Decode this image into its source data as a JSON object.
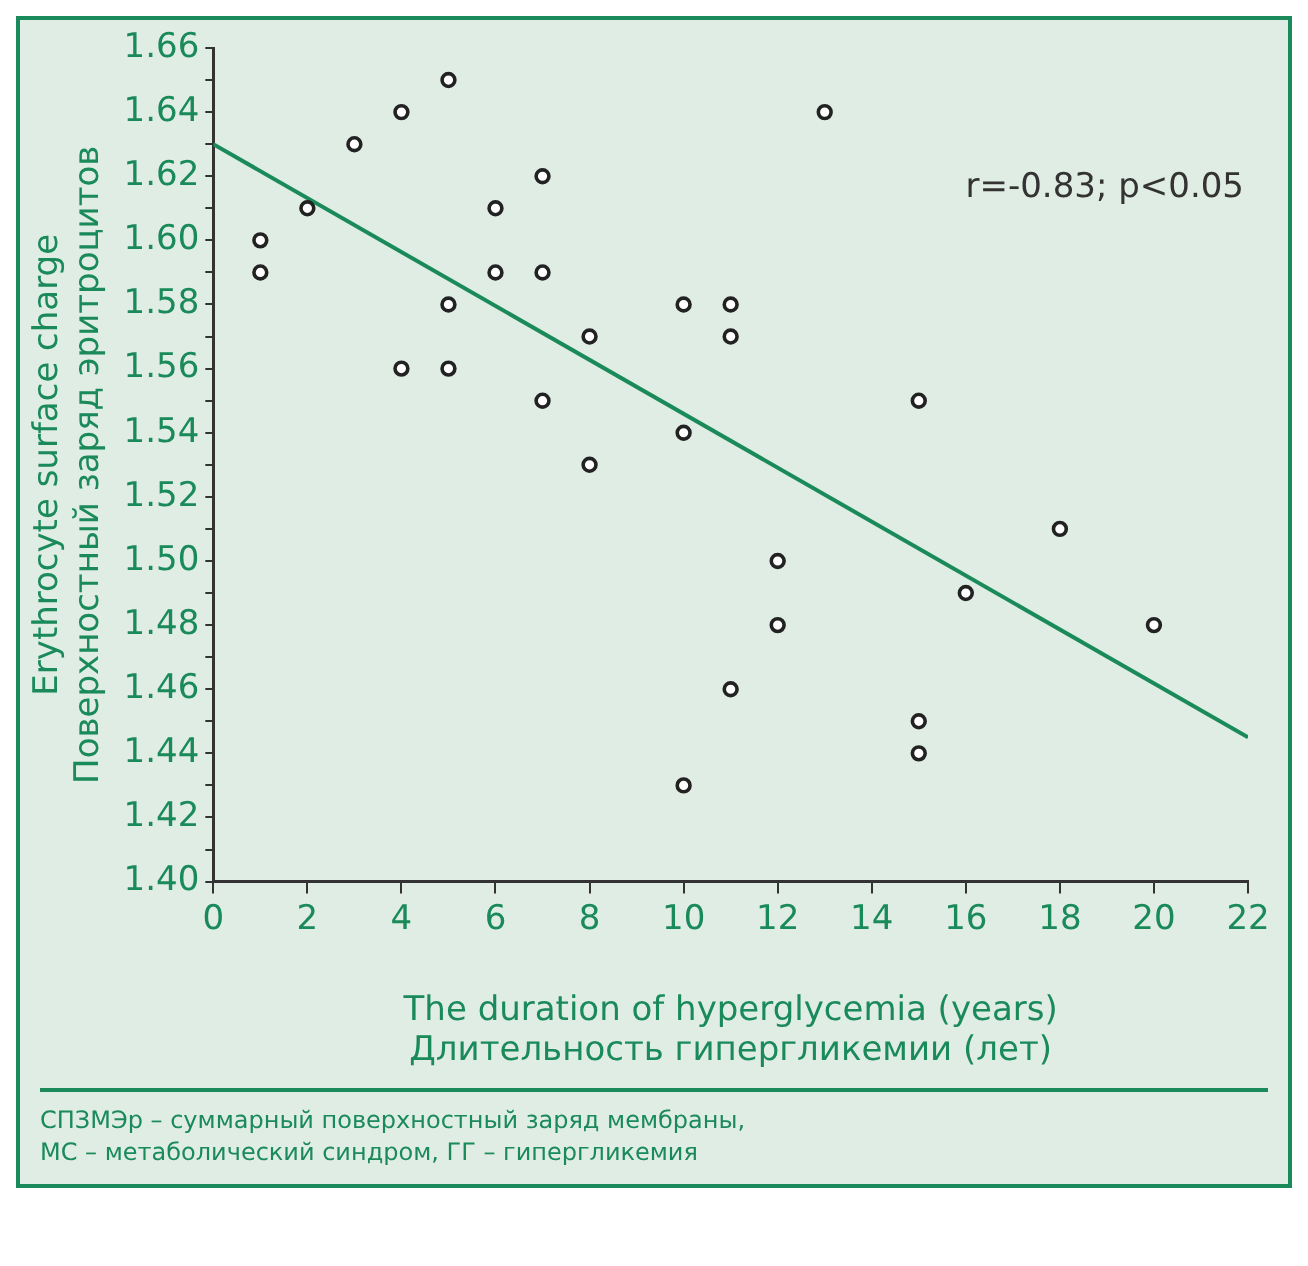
{
  "chart_data": {
    "type": "scatter",
    "xlabel": "The duration of hyperglycemia (years)\nДлительность гипергликемии (лет)",
    "ylabel": "Erythrocyte surface charge\nПоверхностный заряд эритроцитов",
    "annotations": [
      "r=-0.83; p<0.05",
      "СПЗМЭр – суммарный поверхностный заряд мембраны,\nМС – метаболический синдром, ГГ – гипергликемия"
    ],
    "series": [
      {
        "color": "#222222",
        "marker": "circle",
        "x": [
          1,
          1,
          2,
          3,
          4,
          4,
          5,
          5,
          5,
          6,
          6,
          7,
          7,
          7,
          8,
          8,
          10,
          10,
          10,
          11,
          11,
          11,
          12,
          12,
          13,
          15,
          15,
          15,
          16,
          18,
          20
        ],
        "values": [
          1.6,
          1.59,
          1.61,
          1.63,
          1.64,
          1.56,
          1.65,
          1.58,
          1.56,
          1.61,
          1.59,
          1.62,
          1.59,
          1.55,
          1.57,
          1.53,
          1.58,
          1.54,
          1.43,
          1.58,
          1.57,
          1.46,
          1.5,
          1.48,
          1.64,
          1.55,
          1.45,
          1.44,
          1.49,
          1.51,
          1.48
        ]
      },
      {
        "type": "line",
        "color": "#1a8a5a",
        "marker": "none",
        "x": [
          0,
          22
        ],
        "values": [
          1.63,
          1.445
        ]
      }
    ],
    "xlim": [
      0,
      22
    ],
    "xticks": [
      0,
      2,
      4,
      6,
      8,
      10,
      12,
      14,
      16,
      18,
      20,
      22
    ],
    "ylim": [
      1.4,
      1.66
    ],
    "yticks": [
      {
        "value": 1.4,
        "label": "1.40"
      },
      {
        "value": 1.41,
        "label": null
      },
      {
        "value": 1.42,
        "label": "1.42"
      },
      {
        "value": 1.43,
        "label": null
      },
      {
        "value": 1.44,
        "label": "1.44"
      },
      {
        "value": 1.45,
        "label": null
      },
      {
        "value": 1.46,
        "label": "1.46"
      },
      {
        "value": 1.47,
        "label": null
      },
      {
        "value": 1.48,
        "label": "1.48"
      },
      {
        "value": 1.49,
        "label": null
      },
      {
        "value": 1.5,
        "label": "1.50"
      },
      {
        "value": 1.51,
        "label": null
      },
      {
        "value": 1.52,
        "label": "1.52"
      },
      {
        "value": 1.53,
        "label": null
      },
      {
        "value": 1.54,
        "label": "1.54"
      },
      {
        "value": 1.55,
        "label": null
      },
      {
        "value": 1.56,
        "label": "1.56"
      },
      {
        "value": 1.57,
        "label": null
      },
      {
        "value": 1.58,
        "label": "1.58"
      },
      {
        "value": 1.59,
        "label": null
      },
      {
        "value": 1.6,
        "label": "1.60"
      },
      {
        "value": 1.61,
        "label": null
      },
      {
        "value": 1.62,
        "label": "1.62"
      },
      {
        "value": 1.63,
        "label": null
      },
      {
        "value": 1.64,
        "label": "1.64"
      },
      {
        "value": 1.65,
        "label": null
      },
      {
        "value": 1.66,
        "label": "1.66"
      }
    ],
    "grid": false,
    "legend": false
  }
}
